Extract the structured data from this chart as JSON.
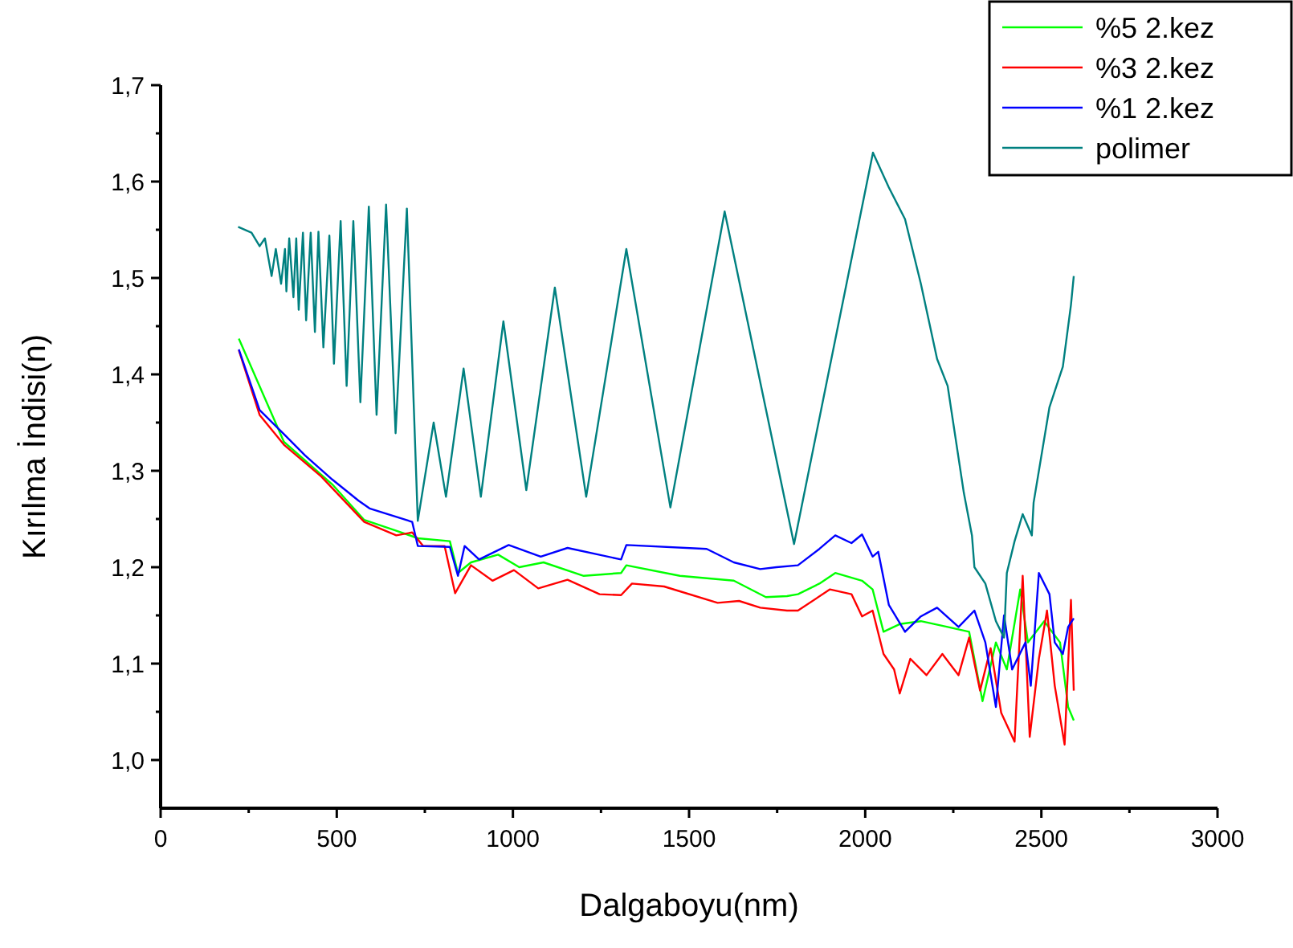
{
  "chart_data": {
    "type": "line",
    "xlabel": "Dalgaboyu(nm)",
    "ylabel": "Kırılma İndisi(n)",
    "xlim": [
      0,
      3000
    ],
    "ylim": [
      0.95,
      1.7
    ],
    "xticks": [
      0,
      {
        "value": 250,
        "label": null
      },
      500,
      {
        "value": 750,
        "label": null
      },
      1000,
      {
        "value": 1250,
        "label": null
      },
      1500,
      {
        "value": 1750,
        "label": null
      },
      2000,
      {
        "value": 2250,
        "label": null
      },
      2500,
      {
        "value": 2750,
        "label": null
      },
      3000
    ],
    "yticks": [
      {
        "value": 1.0,
        "label": "1,0"
      },
      {
        "value": 1.05,
        "label": null
      },
      {
        "value": 1.1,
        "label": "1,1"
      },
      {
        "value": 1.15,
        "label": null
      },
      {
        "value": 1.2,
        "label": "1,2"
      },
      {
        "value": 1.25,
        "label": null
      },
      {
        "value": 1.3,
        "label": "1,3"
      },
      {
        "value": 1.35,
        "label": null
      },
      {
        "value": 1.4,
        "label": "1,4"
      },
      {
        "value": 1.45,
        "label": null
      },
      {
        "value": 1.5,
        "label": "1,5"
      },
      {
        "value": 1.55,
        "label": null
      },
      {
        "value": 1.6,
        "label": "1,6"
      },
      {
        "value": 1.65,
        "label": null
      },
      {
        "value": 1.7,
        "label": "1,7"
      }
    ],
    "grid": false,
    "legend": "top right",
    "marker": "none",
    "line_style": "solid",
    "series": [
      {
        "name": "%5 2.kez",
        "color": "#00ff00",
        "x": [
          222,
          350,
          487,
          578,
          684,
          730,
          821,
          844,
          881,
          958,
          1018,
          1087,
          1201,
          1307,
          1322,
          1474,
          1627,
          1718,
          1778,
          1809,
          1870,
          1915,
          1991,
          2021,
          2052,
          2098,
          2158,
          2234,
          2295,
          2333,
          2371,
          2402,
          2440,
          2462,
          2508,
          2553,
          2576,
          2592
        ],
        "values": [
          1.437,
          1.33,
          1.286,
          1.249,
          1.236,
          1.23,
          1.227,
          1.194,
          1.205,
          1.213,
          1.2,
          1.205,
          1.191,
          1.194,
          1.202,
          1.191,
          1.186,
          1.169,
          1.17,
          1.172,
          1.183,
          1.194,
          1.186,
          1.177,
          1.133,
          1.141,
          1.144,
          1.138,
          1.133,
          1.061,
          1.122,
          1.094,
          1.177,
          1.122,
          1.144,
          1.122,
          1.055,
          1.041
        ]
      },
      {
        "name": "%3 2.kez",
        "color": "#ff0000",
        "x": [
          222,
          281,
          350,
          456,
          578,
          669,
          714,
          745,
          806,
          836,
          881,
          942,
          1003,
          1072,
          1155,
          1246,
          1307,
          1338,
          1429,
          1581,
          1642,
          1702,
          1778,
          1809,
          1900,
          1961,
          1991,
          2021,
          2052,
          2082,
          2098,
          2128,
          2174,
          2219,
          2265,
          2295,
          2326,
          2356,
          2386,
          2424,
          2447,
          2467,
          2493,
          2516,
          2538,
          2566,
          2584,
          2592
        ],
        "values": [
          1.425,
          1.358,
          1.327,
          1.294,
          1.247,
          1.233,
          1.236,
          1.222,
          1.222,
          1.173,
          1.202,
          1.186,
          1.197,
          1.178,
          1.187,
          1.172,
          1.171,
          1.183,
          1.18,
          1.163,
          1.165,
          1.158,
          1.155,
          1.155,
          1.177,
          1.172,
          1.149,
          1.155,
          1.11,
          1.094,
          1.069,
          1.105,
          1.088,
          1.11,
          1.088,
          1.127,
          1.072,
          1.116,
          1.049,
          1.019,
          1.191,
          1.024,
          1.105,
          1.155,
          1.077,
          1.016,
          1.166,
          1.072
        ]
      },
      {
        "name": "%1 2.kez",
        "color": "#0000ff",
        "x": [
          222,
          281,
          350,
          410,
          487,
          562,
          593,
          714,
          730,
          821,
          844,
          863,
          904,
          988,
          1079,
          1155,
          1307,
          1322,
          1550,
          1627,
          1702,
          1748,
          1809,
          1870,
          1915,
          1961,
          1991,
          2021,
          2037,
          2067,
          2113,
          2158,
          2204,
          2265,
          2310,
          2341,
          2371,
          2394,
          2417,
          2455,
          2470,
          2493,
          2523,
          2538,
          2561,
          2576,
          2592
        ],
        "values": [
          1.426,
          1.363,
          1.338,
          1.316,
          1.291,
          1.269,
          1.261,
          1.247,
          1.222,
          1.221,
          1.191,
          1.222,
          1.208,
          1.223,
          1.211,
          1.22,
          1.208,
          1.223,
          1.219,
          1.205,
          1.198,
          1.2,
          1.202,
          1.219,
          1.233,
          1.225,
          1.234,
          1.211,
          1.216,
          1.161,
          1.133,
          1.149,
          1.158,
          1.138,
          1.155,
          1.122,
          1.055,
          1.15,
          1.094,
          1.122,
          1.077,
          1.194,
          1.172,
          1.122,
          1.11,
          1.138,
          1.147
        ]
      },
      {
        "name": "polimer",
        "color": "#008080",
        "x": [
          220,
          258,
          281,
          296,
          315,
          327,
          342,
          353,
          357,
          365,
          377,
          385,
          392,
          404,
          413,
          426,
          438,
          448,
          462,
          479,
          492,
          511,
          528,
          547,
          567,
          591,
          613,
          640,
          667,
          699,
          730,
          775,
          810,
          860,
          909,
          973,
          1038,
          1119,
          1208,
          1322,
          1447,
          1601,
          1798,
          2022,
          2067,
          2113,
          2158,
          2204,
          2234,
          2280,
          2303,
          2310,
          2341,
          2371,
          2394,
          2402,
          2424,
          2447,
          2473,
          2478,
          2523,
          2561,
          2584,
          2592
        ],
        "values": [
          1.553,
          1.547,
          1.533,
          1.541,
          1.502,
          1.53,
          1.494,
          1.53,
          1.486,
          1.541,
          1.48,
          1.541,
          1.467,
          1.547,
          1.456,
          1.547,
          1.444,
          1.548,
          1.428,
          1.544,
          1.411,
          1.559,
          1.388,
          1.559,
          1.371,
          1.574,
          1.358,
          1.576,
          1.339,
          1.572,
          1.248,
          1.35,
          1.273,
          1.406,
          1.273,
          1.455,
          1.28,
          1.49,
          1.273,
          1.53,
          1.262,
          1.569,
          1.224,
          1.63,
          1.594,
          1.561,
          1.494,
          1.416,
          1.388,
          1.277,
          1.233,
          1.2,
          1.183,
          1.144,
          1.127,
          1.194,
          1.227,
          1.255,
          1.233,
          1.267,
          1.366,
          1.408,
          1.472,
          1.502
        ]
      }
    ]
  }
}
